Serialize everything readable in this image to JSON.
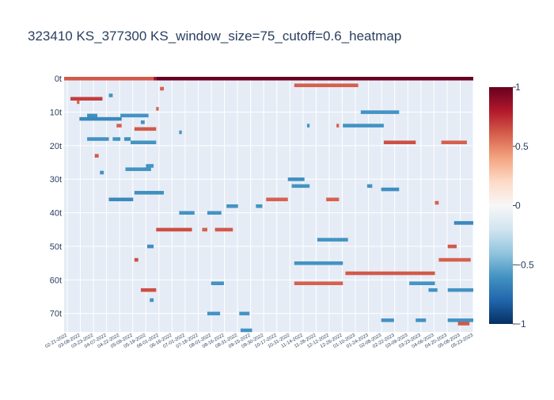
{
  "chart_data": {
    "type": "heatmap",
    "title": "323410 KS_377300 KS_window_size=75_cutoff=0.6_heatmap",
    "xlabel": "",
    "ylabel": "",
    "x_tick_labels": [
      "02-21-2022",
      "03-08-2022",
      "03-23-2022",
      "04-07-2022",
      "04-22-2022",
      "05-09-2022",
      "05-19-2022",
      "06-01-2022",
      "06-16-2022",
      "07-01-2022",
      "07-18-2022",
      "08-01-2022",
      "08-16-2022",
      "08-31-2022",
      "09-15-2022",
      "09-30-2022",
      "10-17-2022",
      "10-31-2022",
      "11-14-2022",
      "11-28-2022",
      "12-12-2022",
      "12-26-2022",
      "01-10-2023",
      "01-24-2023",
      "02-08-2023",
      "02-22-2023",
      "03-09-2023",
      "03-23-2023",
      "04-06-2023",
      "04-20-2023",
      "05-08-2023",
      "05-23-2023"
    ],
    "y_tick_labels": [
      "0t",
      "10t",
      "20t",
      "30t",
      "40t",
      "50t",
      "60t",
      "70t"
    ],
    "y_range": [
      0,
      75
    ],
    "x_count": 320,
    "colorscale": "RdBu",
    "colorscale_stops": [
      "#053061",
      "#2166ac",
      "#4393c3",
      "#92c5de",
      "#d1e5f0",
      "#f7f7f7",
      "#fddbc7",
      "#f4a582",
      "#d6604d",
      "#b2182b",
      "#67001f"
    ],
    "zmin": -1,
    "zmax": 1,
    "colorbar_ticks": [
      "1",
      "0.5",
      "0",
      "−0.5",
      "−1"
    ],
    "colorbar_values": [
      1,
      0.5,
      0,
      -0.5,
      -1
    ],
    "background_color": "#e5ecf6",
    "grid": true,
    "segments": [
      {
        "row": 0,
        "x0": 0,
        "x1": 70,
        "value": 0.62
      },
      {
        "row": 0,
        "x0": 70,
        "x1": 72,
        "value": 0.85
      },
      {
        "row": 0,
        "x0": 72,
        "x1": 320,
        "value": 1.0
      },
      {
        "row": 2,
        "x0": 180,
        "x1": 230,
        "value": 0.6
      },
      {
        "row": 3,
        "x0": 75,
        "x1": 78,
        "value": 0.6
      },
      {
        "row": 5,
        "x0": 35,
        "x1": 38,
        "value": -0.6
      },
      {
        "row": 6,
        "x0": 5,
        "x1": 30,
        "value": 0.7
      },
      {
        "row": 7,
        "x0": 10,
        "x1": 12,
        "value": 0.6
      },
      {
        "row": 9,
        "x0": 72,
        "x1": 74,
        "value": 0.6
      },
      {
        "row": 10,
        "x0": 232,
        "x1": 262,
        "value": -0.6
      },
      {
        "row": 11,
        "x0": 18,
        "x1": 26,
        "value": -0.62
      },
      {
        "row": 11,
        "x0": 44,
        "x1": 66,
        "value": -0.6
      },
      {
        "row": 12,
        "x0": 12,
        "x1": 45,
        "value": -0.65
      },
      {
        "row": 13,
        "x0": 60,
        "x1": 63,
        "value": -0.6
      },
      {
        "row": 14,
        "x0": 41,
        "x1": 45,
        "value": 0.6
      },
      {
        "row": 14,
        "x0": 190,
        "x1": 192,
        "value": -0.6
      },
      {
        "row": 14,
        "x0": 213,
        "x1": 215,
        "value": 0.6
      },
      {
        "row": 14,
        "x0": 218,
        "x1": 250,
        "value": -0.6
      },
      {
        "row": 15,
        "x0": 55,
        "x1": 72,
        "value": 0.62
      },
      {
        "row": 16,
        "x0": 90,
        "x1": 92,
        "value": -0.6
      },
      {
        "row": 18,
        "x0": 18,
        "x1": 35,
        "value": -0.6
      },
      {
        "row": 18,
        "x0": 38,
        "x1": 44,
        "value": -0.6
      },
      {
        "row": 18,
        "x0": 47,
        "x1": 52,
        "value": -0.62
      },
      {
        "row": 19,
        "x0": 52,
        "x1": 72,
        "value": -0.6
      },
      {
        "row": 19,
        "x0": 250,
        "x1": 275,
        "value": 0.65
      },
      {
        "row": 19,
        "x0": 295,
        "x1": 315,
        "value": 0.6
      },
      {
        "row": 23,
        "x0": 24,
        "x1": 27,
        "value": 0.62
      },
      {
        "row": 26,
        "x0": 64,
        "x1": 70,
        "value": -0.6
      },
      {
        "row": 27,
        "x0": 48,
        "x1": 68,
        "value": -0.6
      },
      {
        "row": 28,
        "x0": 28,
        "x1": 31,
        "value": -0.6
      },
      {
        "row": 30,
        "x0": 175,
        "x1": 188,
        "value": -0.62
      },
      {
        "row": 32,
        "x0": 178,
        "x1": 192,
        "value": -0.6
      },
      {
        "row": 32,
        "x0": 237,
        "x1": 241,
        "value": -0.6
      },
      {
        "row": 33,
        "x0": 248,
        "x1": 262,
        "value": -0.62
      },
      {
        "row": 34,
        "x0": 55,
        "x1": 78,
        "value": -0.62
      },
      {
        "row": 36,
        "x0": 35,
        "x1": 54,
        "value": -0.65
      },
      {
        "row": 36,
        "x0": 158,
        "x1": 175,
        "value": 0.6
      },
      {
        "row": 36,
        "x0": 205,
        "x1": 215,
        "value": 0.6
      },
      {
        "row": 37,
        "x0": 290,
        "x1": 293,
        "value": 0.6
      },
      {
        "row": 38,
        "x0": 127,
        "x1": 136,
        "value": -0.6
      },
      {
        "row": 38,
        "x0": 150,
        "x1": 155,
        "value": -0.6
      },
      {
        "row": 40,
        "x0": 90,
        "x1": 102,
        "value": -0.6
      },
      {
        "row": 40,
        "x0": 112,
        "x1": 123,
        "value": -0.6
      },
      {
        "row": 43,
        "x0": 305,
        "x1": 320,
        "value": -0.65
      },
      {
        "row": 45,
        "x0": 72,
        "x1": 100,
        "value": 0.65
      },
      {
        "row": 45,
        "x0": 108,
        "x1": 112,
        "value": 0.6
      },
      {
        "row": 45,
        "x0": 118,
        "x1": 132,
        "value": 0.62
      },
      {
        "row": 48,
        "x0": 198,
        "x1": 222,
        "value": -0.6
      },
      {
        "row": 50,
        "x0": 65,
        "x1": 70,
        "value": -0.62
      },
      {
        "row": 50,
        "x0": 300,
        "x1": 307,
        "value": 0.62
      },
      {
        "row": 54,
        "x0": 55,
        "x1": 58,
        "value": 0.65
      },
      {
        "row": 54,
        "x0": 293,
        "x1": 318,
        "value": 0.6
      },
      {
        "row": 55,
        "x0": 180,
        "x1": 218,
        "value": -0.6
      },
      {
        "row": 58,
        "x0": 220,
        "x1": 290,
        "value": 0.62
      },
      {
        "row": 61,
        "x0": 180,
        "x1": 218,
        "value": 0.6
      },
      {
        "row": 61,
        "x0": 270,
        "x1": 290,
        "value": -0.6
      },
      {
        "row": 61,
        "x0": 115,
        "x1": 125,
        "value": -0.6
      },
      {
        "row": 63,
        "x0": 60,
        "x1": 72,
        "value": 0.65
      },
      {
        "row": 63,
        "x0": 285,
        "x1": 292,
        "value": -0.6
      },
      {
        "row": 63,
        "x0": 300,
        "x1": 320,
        "value": -0.6
      },
      {
        "row": 66,
        "x0": 67,
        "x1": 70,
        "value": -0.6
      },
      {
        "row": 70,
        "x0": 112,
        "x1": 122,
        "value": -0.6
      },
      {
        "row": 70,
        "x0": 137,
        "x1": 145,
        "value": -0.6
      },
      {
        "row": 72,
        "x0": 248,
        "x1": 258,
        "value": -0.6
      },
      {
        "row": 72,
        "x0": 275,
        "x1": 283,
        "value": -0.6
      },
      {
        "row": 72,
        "x0": 300,
        "x1": 320,
        "value": -0.6
      },
      {
        "row": 73,
        "x0": 308,
        "x1": 317,
        "value": 0.62
      },
      {
        "row": 75,
        "x0": 138,
        "x1": 147,
        "value": -0.6
      }
    ]
  }
}
